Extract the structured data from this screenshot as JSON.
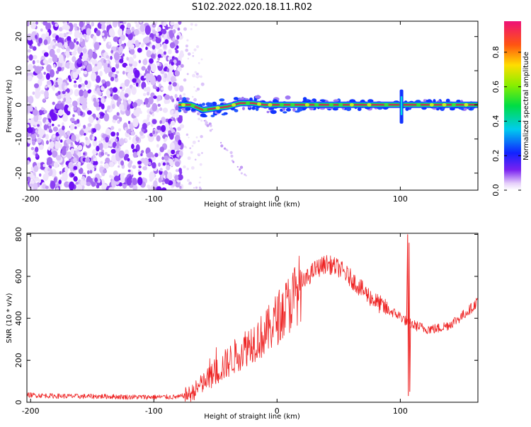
{
  "title": "S102.2022.020.18.11.R02",
  "colors": {
    "scatter": [
      "#efe3fc",
      "#dcc4fa",
      "#c39bf5",
      "#a56bf1",
      "#8a3df2",
      "#6f10f4"
    ],
    "snr_line": "#ee2222",
    "track_core": "#dd2255",
    "track_glow": "#22cc44",
    "track_halo": "#1133ff"
  },
  "chart_data": [
    {
      "type": "heatmap",
      "xlabel": "Height of straight line (km)",
      "ylabel": "Frequency (Hz)",
      "xlim": [
        -203,
        163
      ],
      "ylim": [
        -25,
        24.5
      ],
      "xticks": [
        -200,
        -100,
        0,
        100
      ],
      "yticks": [
        -20,
        -10,
        0,
        10,
        20
      ],
      "noise_region_x": [
        -203,
        -77
      ],
      "doppler_track": {
        "x": [
          -80,
          -70,
          -60,
          -50,
          -40,
          -30,
          -20,
          -10,
          0,
          10,
          20,
          40,
          60,
          80,
          100,
          120,
          140,
          160
        ],
        "y": [
          0,
          0,
          -1.5,
          -1,
          -0.5,
          0.5,
          0.5,
          0,
          0,
          0,
          0,
          0,
          0,
          0,
          0,
          0,
          0,
          0
        ]
      },
      "transient_x": 101,
      "colorbar": {
        "label": "Normalized spectral amplitude",
        "range": [
          0,
          0.98
        ],
        "ticks": [
          "0.0",
          "0.2",
          "0.4",
          "0.6",
          "0.8"
        ]
      },
      "grid": false
    },
    {
      "type": "line",
      "xlabel": "Height of straight line (km)",
      "ylabel": "SNR (10 * v/v)",
      "xlim": [
        -203,
        163
      ],
      "ylim": [
        0,
        805
      ],
      "xticks": [
        -200,
        -100,
        0,
        100
      ],
      "yticks": [
        0,
        200,
        400,
        600,
        800
      ],
      "series": [
        {
          "x": [
            -203,
            -180,
            -160,
            -140,
            -120,
            -100,
            -80,
            -70,
            -60,
            -50,
            -40,
            -30,
            -20,
            -10,
            0,
            10,
            20,
            30,
            40,
            50,
            60,
            70,
            80,
            90,
            100,
            106,
            110,
            120,
            130,
            140,
            150,
            160,
            163
          ],
          "y": [
            35,
            30,
            28,
            28,
            25,
            25,
            25,
            40,
            90,
            140,
            190,
            240,
            290,
            320,
            400,
            470,
            560,
            630,
            660,
            640,
            590,
            530,
            480,
            440,
            410,
            380,
            370,
            350,
            350,
            370,
            410,
            460,
            490
          ]
        }
      ],
      "spike": {
        "x": 106,
        "y_max": 800,
        "y_min": 30
      },
      "grid": false
    }
  ]
}
